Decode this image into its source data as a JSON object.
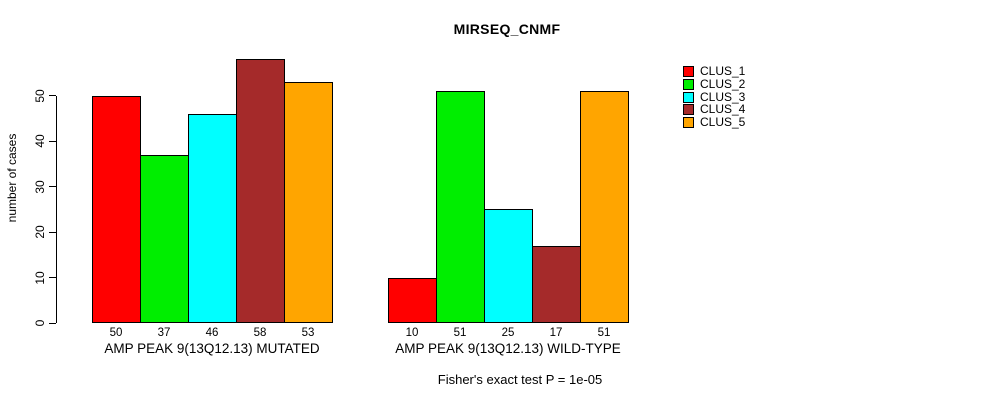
{
  "chart_data": {
    "type": "bar",
    "title": "MIRSEQ_CNMF",
    "ylabel": "number of cases",
    "xlabel": "",
    "footnote": "Fisher's exact test P = 1e-05",
    "yticks": [
      0,
      10,
      20,
      30,
      40,
      50
    ],
    "ylim": [
      0,
      58
    ],
    "grid": false,
    "legend_position": "right",
    "series": [
      {
        "name": "CLUS_1",
        "color": "#FF0000"
      },
      {
        "name": "CLUS_2",
        "color": "#00EE00"
      },
      {
        "name": "CLUS_3",
        "color": "#00FFFF"
      },
      {
        "name": "CLUS_4",
        "color": "#A52A2A"
      },
      {
        "name": "CLUS_5",
        "color": "#FFA500"
      }
    ],
    "groups": [
      {
        "label": "AMP PEAK 9(13Q12.13) MUTATED",
        "values": [
          50,
          37,
          46,
          58,
          53
        ]
      },
      {
        "label": "AMP PEAK 9(13Q12.13) WILD-TYPE",
        "values": [
          10,
          51,
          25,
          17,
          51
        ]
      }
    ]
  }
}
